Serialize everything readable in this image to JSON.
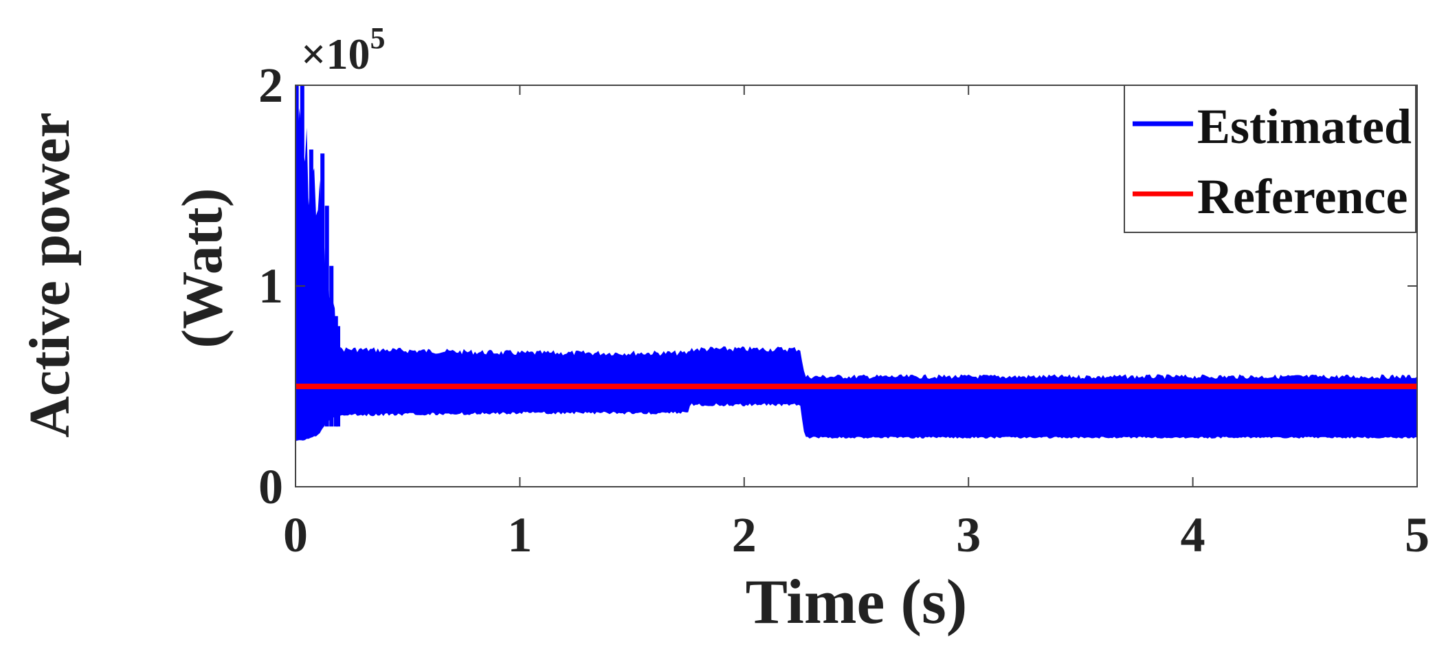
{
  "chart_data": {
    "type": "line",
    "xlabel": "Time (s)",
    "ylabel_line1": "Active power",
    "ylabel_line2": "(Watt)",
    "xlim": [
      0,
      5
    ],
    "ylim": [
      0,
      200000
    ],
    "x_ticks": [
      "0",
      "1",
      "2",
      "3",
      "4",
      "5"
    ],
    "y_ticks": [
      "0",
      "1",
      "2"
    ],
    "y_multiplier_base": "×10",
    "y_multiplier_exp": "5",
    "grid": false,
    "legend_position": "top-right",
    "series": [
      {
        "name": "Estimated",
        "color": "#0000ff",
        "style": "high-frequency oscillation band",
        "envelope": [
          {
            "t": 0.0,
            "low": 22000,
            "high": 200000
          },
          {
            "t": 0.1,
            "low": 25000,
            "high": 165000
          },
          {
            "t": 0.15,
            "low": 33000,
            "high": 110000
          },
          {
            "t": 0.2,
            "low": 35000,
            "high": 70000
          },
          {
            "t": 1.0,
            "low": 36000,
            "high": 68000
          },
          {
            "t": 1.75,
            "low": 36000,
            "high": 68000
          },
          {
            "t": 1.76,
            "low": 40000,
            "high": 70000
          },
          {
            "t": 2.25,
            "low": 40000,
            "high": 70000
          },
          {
            "t": 2.27,
            "low": 24000,
            "high": 56000
          },
          {
            "t": 5.0,
            "low": 24000,
            "high": 56000
          }
        ]
      },
      {
        "name": "Reference",
        "color": "#ff0000",
        "x": [
          0,
          5
        ],
        "values": [
          50000,
          50000
        ]
      }
    ]
  }
}
